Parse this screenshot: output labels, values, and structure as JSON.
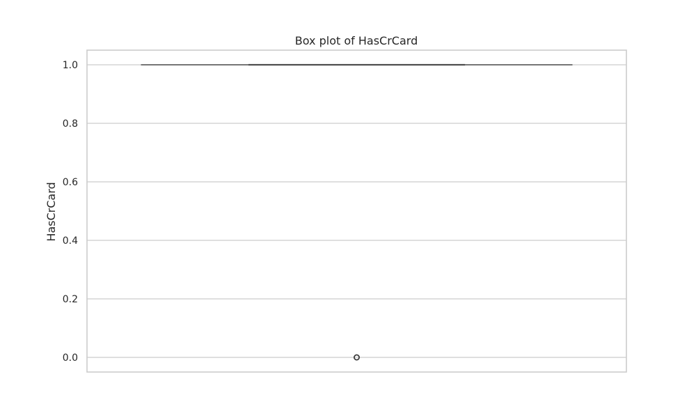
{
  "chart_data": {
    "type": "box",
    "title": "Box plot of HasCrCard",
    "xlabel": "",
    "ylabel": "HasCrCard",
    "ylim": [
      -0.05,
      1.05
    ],
    "yticks": [
      0.0,
      0.2,
      0.4,
      0.6,
      0.8,
      1.0
    ],
    "ytick_labels": [
      "0.0",
      "0.2",
      "0.4",
      "0.6",
      "0.8",
      "1.0"
    ],
    "grid": true,
    "box": {
      "min": 1.0,
      "q1": 1.0,
      "median": 1.0,
      "q3": 1.0,
      "max": 1.0,
      "outliers": [
        0.0
      ]
    },
    "colors": {
      "box_line": "#4d4d4d",
      "grid": "#cccccc",
      "frame": "#cccccc",
      "text": "#262626"
    }
  }
}
